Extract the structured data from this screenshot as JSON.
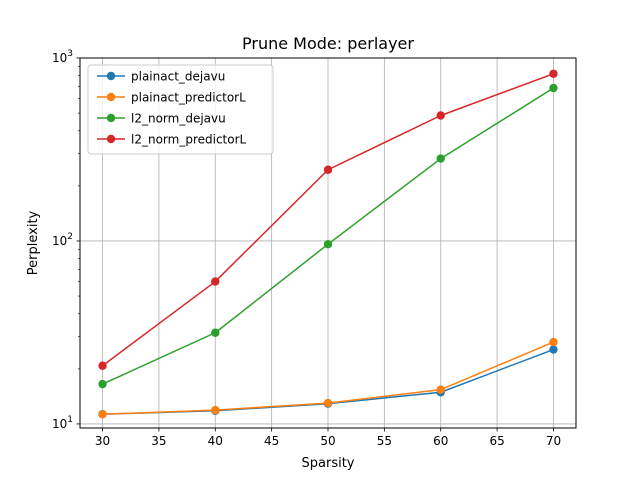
{
  "chart_data": {
    "type": "line",
    "title": "Prune Mode: perlayer",
    "xlabel": "Sparsity",
    "ylabel": "Perplexity",
    "x": [
      30,
      40,
      50,
      60,
      70
    ],
    "xlim": [
      28,
      72
    ],
    "xticks": [
      30,
      35,
      40,
      45,
      50,
      55,
      60,
      65,
      70
    ],
    "yscale": "log",
    "ylim": [
      9.5,
      1000
    ],
    "yticks": [
      {
        "value": 10,
        "base": "10",
        "exp": "1"
      },
      {
        "value": 100,
        "base": "10",
        "exp": "2"
      },
      {
        "value": 1000,
        "base": "10",
        "exp": "3"
      }
    ],
    "grid": true,
    "legend_position": "top-left",
    "series": [
      {
        "name": "plainact_dejavu",
        "color": "#1f77b4",
        "values": [
          11.3,
          11.8,
          12.9,
          14.9,
          25.5
        ]
      },
      {
        "name": "plainact_predictorL",
        "color": "#ff7f0e",
        "values": [
          11.3,
          11.9,
          13.0,
          15.4,
          28.0
        ]
      },
      {
        "name": "l2_norm_dejavu",
        "color": "#2ca02c",
        "values": [
          16.5,
          31.5,
          96.0,
          282.0,
          685.0
        ]
      },
      {
        "name": "l2_norm_predictorL",
        "color": "#d62728",
        "values": [
          20.8,
          60.0,
          245.0,
          485.0,
          820.0
        ]
      }
    ]
  }
}
